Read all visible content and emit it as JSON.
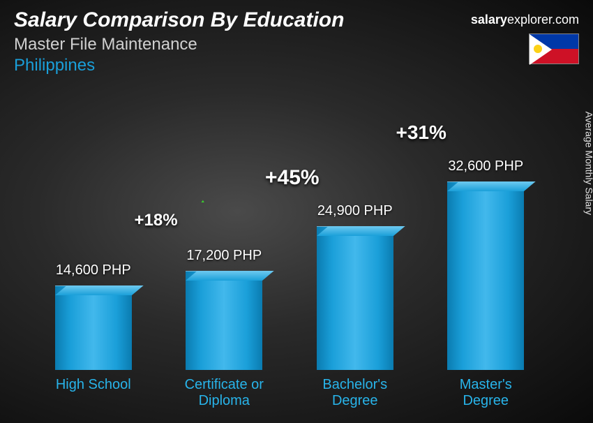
{
  "header": {
    "title": "Salary Comparison By Education",
    "subtitle": "Master File Maintenance",
    "country": "Philippines"
  },
  "brand": {
    "bold": "salary",
    "rest": "explorer.com"
  },
  "side_label": "Average Monthly Salary",
  "chart": {
    "type": "bar",
    "bar_color": "#1a9fd9",
    "arrow_color": "#3bcb2f",
    "label_color": "#28b4ea",
    "value_color": "#ffffff",
    "pct_color": "#ffffff",
    "max_value": 32600,
    "bars": [
      {
        "label": "High School",
        "value": 14600,
        "value_text": "14,600 PHP"
      },
      {
        "label": "Certificate or\nDiploma",
        "value": 17200,
        "value_text": "17,200 PHP"
      },
      {
        "label": "Bachelor's\nDegree",
        "value": 24900,
        "value_text": "24,900 PHP"
      },
      {
        "label": "Master's\nDegree",
        "value": 32600,
        "value_text": "32,600 PHP"
      }
    ],
    "arcs": [
      {
        "from": 0,
        "to": 1,
        "pct": "+18%",
        "fontsize": 24
      },
      {
        "from": 1,
        "to": 2,
        "pct": "+45%",
        "fontsize": 30
      },
      {
        "from": 2,
        "to": 3,
        "pct": "+31%",
        "fontsize": 28
      }
    ]
  },
  "flag": {
    "country": "Philippines"
  }
}
